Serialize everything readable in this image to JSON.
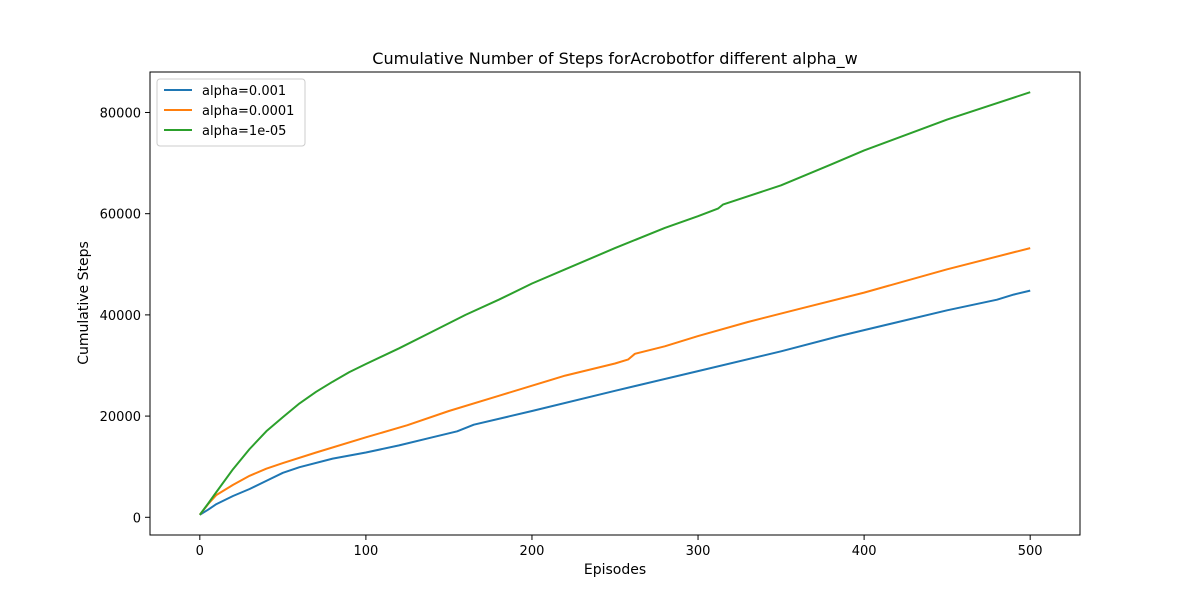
{
  "chart_data": {
    "type": "line",
    "title": "Cumulative Number of Steps forAcrobotfor different alpha_w",
    "xlabel": "Episodes",
    "ylabel": "Cumulative Steps",
    "xlim": [
      -30,
      530
    ],
    "ylim": [
      -3500,
      88000
    ],
    "xticks": [
      0,
      100,
      200,
      300,
      400,
      500
    ],
    "yticks": [
      0,
      20000,
      40000,
      60000,
      80000
    ],
    "grid": false,
    "legend_position": "top-left",
    "series": [
      {
        "name": "alpha=0.001",
        "color": "#1f77b4",
        "points": [
          [
            0,
            500
          ],
          [
            5,
            1500
          ],
          [
            10,
            2600
          ],
          [
            20,
            4200
          ],
          [
            30,
            5600
          ],
          [
            40,
            7200
          ],
          [
            50,
            8800
          ],
          [
            60,
            9900
          ],
          [
            80,
            11600
          ],
          [
            100,
            12800
          ],
          [
            120,
            14200
          ],
          [
            140,
            15800
          ],
          [
            155,
            17000
          ],
          [
            165,
            18300
          ],
          [
            200,
            21000
          ],
          [
            250,
            25000
          ],
          [
            300,
            28900
          ],
          [
            350,
            32800
          ],
          [
            385,
            35800
          ],
          [
            400,
            37000
          ],
          [
            450,
            40900
          ],
          [
            480,
            43000
          ],
          [
            490,
            44000
          ],
          [
            500,
            44800
          ]
        ]
      },
      {
        "name": "alpha=0.0001",
        "color": "#ff7f0e",
        "points": [
          [
            0,
            500
          ],
          [
            5,
            2600
          ],
          [
            10,
            4400
          ],
          [
            20,
            6400
          ],
          [
            30,
            8200
          ],
          [
            40,
            9600
          ],
          [
            50,
            10700
          ],
          [
            70,
            12800
          ],
          [
            100,
            15800
          ],
          [
            125,
            18200
          ],
          [
            150,
            21000
          ],
          [
            180,
            24000
          ],
          [
            200,
            26000
          ],
          [
            220,
            28000
          ],
          [
            250,
            30400
          ],
          [
            258,
            31200
          ],
          [
            262,
            32300
          ],
          [
            280,
            33800
          ],
          [
            300,
            35800
          ],
          [
            330,
            38600
          ],
          [
            360,
            41100
          ],
          [
            400,
            44400
          ],
          [
            450,
            49000
          ],
          [
            500,
            53200
          ]
        ]
      },
      {
        "name": "alpha=1e-05",
        "color": "#2ca02c",
        "points": [
          [
            0,
            500
          ],
          [
            5,
            2700
          ],
          [
            10,
            5000
          ],
          [
            20,
            9500
          ],
          [
            30,
            13500
          ],
          [
            40,
            17000
          ],
          [
            50,
            19800
          ],
          [
            60,
            22500
          ],
          [
            70,
            24800
          ],
          [
            80,
            26800
          ],
          [
            90,
            28700
          ],
          [
            100,
            30300
          ],
          [
            120,
            33400
          ],
          [
            140,
            36700
          ],
          [
            160,
            40000
          ],
          [
            180,
            43000
          ],
          [
            200,
            46200
          ],
          [
            220,
            49000
          ],
          [
            250,
            53200
          ],
          [
            280,
            57200
          ],
          [
            300,
            59500
          ],
          [
            312,
            61000
          ],
          [
            315,
            61800
          ],
          [
            350,
            65600
          ],
          [
            380,
            69700
          ],
          [
            400,
            72500
          ],
          [
            450,
            78600
          ],
          [
            500,
            84000
          ]
        ]
      }
    ]
  }
}
